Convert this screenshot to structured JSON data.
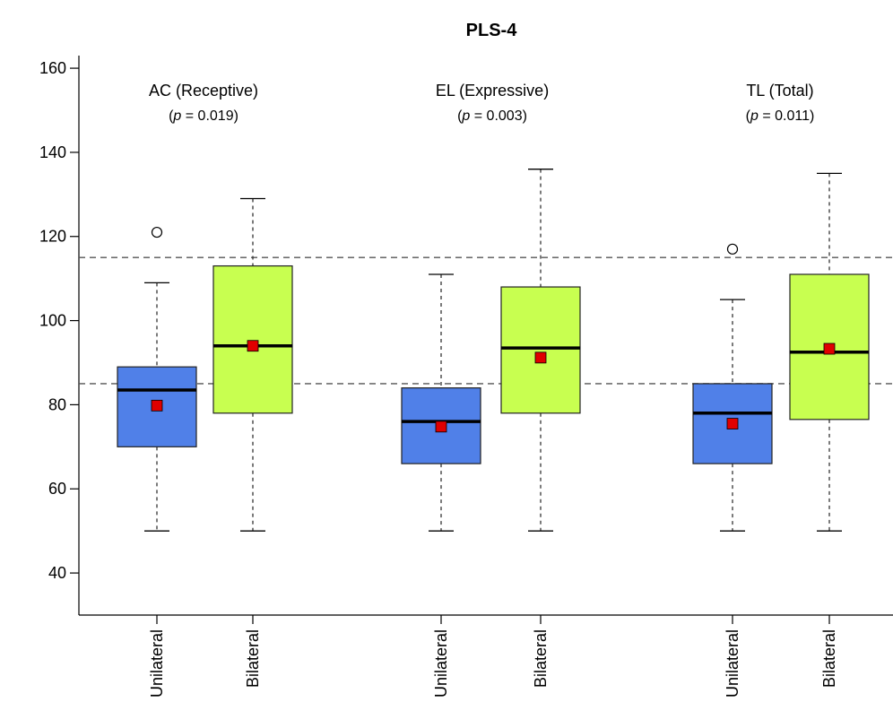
{
  "chart_data": {
    "type": "boxplot",
    "title": "PLS-4",
    "ylim": [
      30,
      163
    ],
    "yticks": [
      40,
      60,
      80,
      100,
      120,
      140,
      160
    ],
    "reference_lines": [
      85,
      115
    ],
    "colors": {
      "Unilateral": "#5080e8",
      "Bilateral": "#c8ff50",
      "mean_marker": "#e00000"
    },
    "groups": [
      {
        "name": "AC (Receptive)",
        "p_text": "(p = 0.019)",
        "p_prefix": "(",
        "p_symbol": "p",
        "p_suffix": " = 0.019)",
        "boxes": [
          {
            "label": "Unilateral",
            "min": 50,
            "q1": 70,
            "median": 83.5,
            "q3": 89,
            "max": 109,
            "mean": 79.8,
            "outliers": [
              121
            ]
          },
          {
            "label": "Bilateral",
            "min": 50,
            "q1": 78,
            "median": 94,
            "q3": 113,
            "max": 129,
            "mean": 94,
            "outliers": []
          }
        ]
      },
      {
        "name": "EL (Expressive)",
        "p_text": "(p = 0.003)",
        "p_prefix": "(",
        "p_symbol": "p",
        "p_suffix": " = 0.003)",
        "boxes": [
          {
            "label": "Unilateral",
            "min": 50,
            "q1": 66,
            "median": 76,
            "q3": 84,
            "max": 111,
            "mean": 74.8,
            "outliers": []
          },
          {
            "label": "Bilateral",
            "min": 50,
            "q1": 78,
            "median": 93.5,
            "q3": 108,
            "max": 136,
            "mean": 91.2,
            "outliers": []
          }
        ]
      },
      {
        "name": "TL (Total)",
        "p_text": "(p = 0.011)",
        "p_prefix": "(",
        "p_symbol": "p",
        "p_suffix": " = 0.011)",
        "boxes": [
          {
            "label": "Unilateral",
            "min": 50,
            "q1": 66,
            "median": 78,
            "q3": 85,
            "max": 105,
            "mean": 75.5,
            "outliers": [
              117
            ]
          },
          {
            "label": "Bilateral",
            "min": 50,
            "q1": 76.5,
            "median": 92.5,
            "q3": 111,
            "max": 135,
            "mean": 93.3,
            "outliers": []
          }
        ]
      }
    ]
  }
}
